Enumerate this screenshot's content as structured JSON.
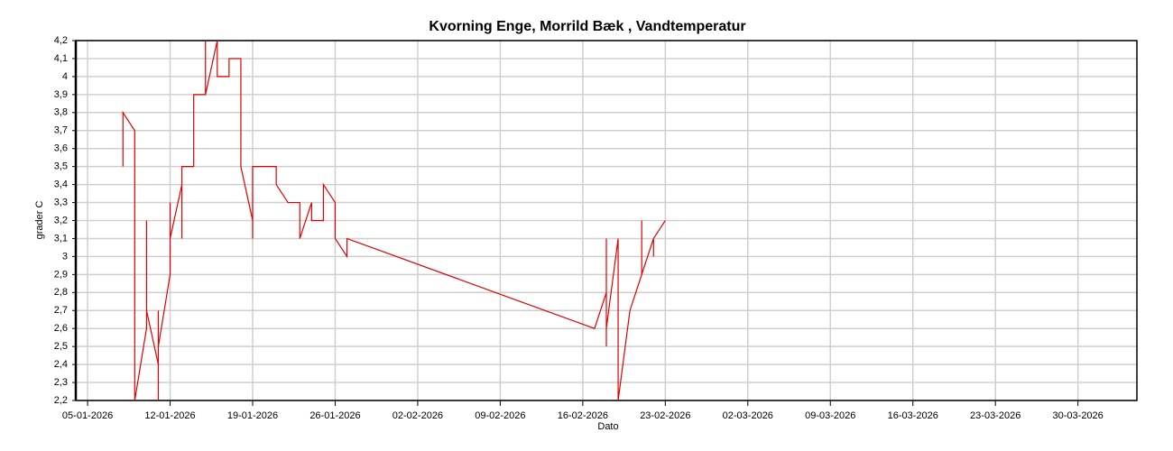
{
  "chart_data": {
    "type": "line",
    "title": "Kvorning Enge, Morrild Bæk , Vandtemperatur",
    "x_label": "Dato",
    "y_label": "grader C",
    "color": "#e00000",
    "grid": true,
    "x": [
      "08-01-2026",
      "08-01-2026",
      "08-01-2026",
      "09-01-2026",
      "09-01-2026",
      "09-01-2026",
      "09-01-2026",
      "09-01-2026",
      "09-01-2026",
      "09-01-2026",
      "10-01-2026",
      "10-01-2026",
      "10-01-2026",
      "10-01-2026",
      "11-01-2026",
      "11-01-2026",
      "11-01-2026",
      "11-01-2026",
      "12-01-2026",
      "12-01-2026",
      "12-01-2026",
      "12-01-2026",
      "13-01-2026",
      "13-01-2026",
      "13-01-2026",
      "13-01-2026",
      "14-01-2026",
      "14-01-2026",
      "14-01-2026",
      "15-01-2026",
      "15-01-2026",
      "15-01-2026",
      "16-01-2026",
      "16-01-2026",
      "17-01-2026",
      "17-01-2026",
      "18-01-2026",
      "18-01-2026",
      "18-01-2026",
      "18-01-2026",
      "19-01-2026",
      "19-01-2026",
      "19-01-2026",
      "20-01-2026",
      "21-01-2026",
      "21-01-2026",
      "22-01-2026",
      "23-01-2026",
      "23-01-2026",
      "24-01-2026",
      "24-01-2026",
      "25-01-2026",
      "25-01-2026",
      "26-01-2026",
      "26-01-2026",
      "27-01-2026",
      "27-01-2026",
      "17-02-2026",
      "18-02-2026",
      "18-02-2026",
      "18-02-2026",
      "18-02-2026",
      "19-02-2026",
      "19-02-2026",
      "19-02-2026",
      "20-02-2026",
      "21-02-2026",
      "21-02-2026",
      "21-02-2026",
      "22-02-2026",
      "22-02-2026",
      "22-02-2026",
      "23-02-2026"
    ],
    "values": [
      3.5,
      3.7,
      3.8,
      3.7,
      3.5,
      3.4,
      2.5,
      3.1,
      2.4,
      2.2,
      2.6,
      3.1,
      3.2,
      2.7,
      2.4,
      2.2,
      2.7,
      2.5,
      2.9,
      3.2,
      3.3,
      3.1,
      3.4,
      3.1,
      3.3,
      3.5,
      3.5,
      3.7,
      3.9,
      3.9,
      4.2,
      3.9,
      4.2,
      4.0,
      4.0,
      4.1,
      4.1,
      3.7,
      3.9,
      3.5,
      3.2,
      3.1,
      3.5,
      3.5,
      3.5,
      3.4,
      3.3,
      3.3,
      3.1,
      3.3,
      3.2,
      3.2,
      3.4,
      3.3,
      3.1,
      3.0,
      3.1,
      2.6,
      2.8,
      2.5,
      3.1,
      2.6,
      3.1,
      2.4,
      2.2,
      2.7,
      2.9,
      3.2,
      2.9,
      3.1,
      3.0,
      3.1,
      3.2
    ],
    "xlim": [
      "04-01-2026",
      "04-04-2026"
    ],
    "xticks": [
      "05-01-2026",
      "12-01-2026",
      "19-01-2026",
      "26-01-2026",
      "02-02-2026",
      "09-02-2026",
      "16-02-2026",
      "23-02-2026",
      "02-03-2026",
      "09-03-2026",
      "16-03-2026",
      "23-03-2026",
      "30-03-2026"
    ],
    "ylim": [
      2.2,
      4.2
    ],
    "yticks": [
      {
        "value": 2.2,
        "label": "2,2"
      },
      {
        "value": 2.3,
        "label": "2,3"
      },
      {
        "value": 2.4,
        "label": "2,4"
      },
      {
        "value": 2.5,
        "label": "2,5"
      },
      {
        "value": 2.6,
        "label": "2,6"
      },
      {
        "value": 2.7,
        "label": "2,7"
      },
      {
        "value": 2.8,
        "label": "2,8"
      },
      {
        "value": 2.9,
        "label": "2,9"
      },
      3,
      {
        "value": 3.1,
        "label": "3,1"
      },
      {
        "value": 3.2,
        "label": "3,2"
      },
      {
        "value": 3.3,
        "label": "3,3"
      },
      {
        "value": 3.4,
        "label": "3,4"
      },
      {
        "value": 3.5,
        "label": "3,5"
      },
      {
        "value": 3.6,
        "label": "3,6"
      },
      {
        "value": 3.7,
        "label": "3,7"
      },
      {
        "value": 3.8,
        "label": "3,8"
      },
      {
        "value": 3.9,
        "label": "3,9"
      },
      4,
      {
        "value": 4.1,
        "label": "4,1"
      },
      {
        "value": 4.2,
        "label": "4,2"
      }
    ]
  }
}
